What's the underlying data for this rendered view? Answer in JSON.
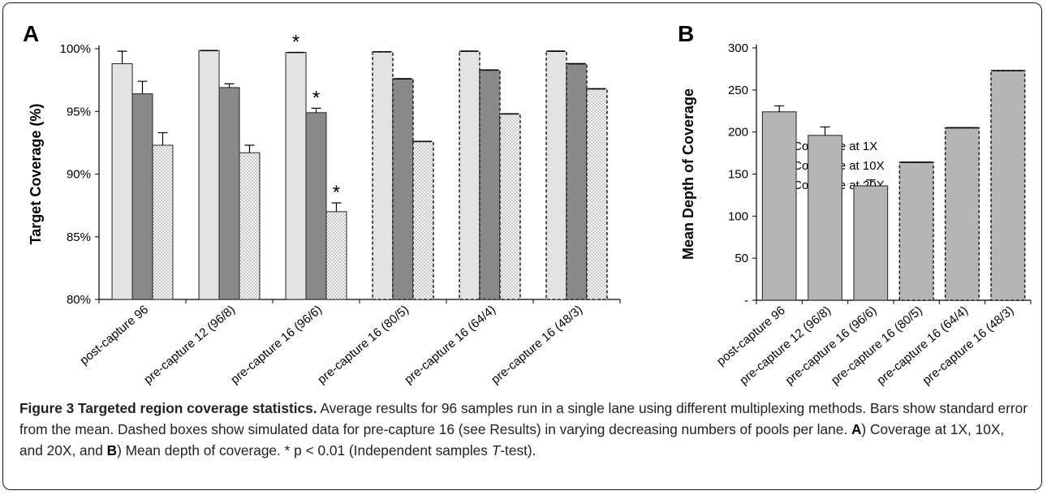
{
  "chart_data": [
    {
      "panel": "A",
      "type": "bar",
      "ylabel": "Target Coverage (%)",
      "ylim": [
        80,
        100
      ],
      "yticks": [
        80,
        85,
        90,
        95,
        100
      ],
      "ytick_labels": [
        "80%",
        "85%",
        "90%",
        "95%",
        "100%"
      ],
      "categories": [
        "post-capture 96",
        "pre-capture 12 (96/8)",
        "pre-capture 16 (96/6)",
        "pre-capture 16 (80/5)",
        "pre-capture 16 (64/4)",
        "pre-capture 16 (48/3)"
      ],
      "simulated": [
        false,
        false,
        false,
        true,
        true,
        true
      ],
      "series": [
        {
          "name": "Coverage at 1X",
          "color": "#e3e3e3",
          "pattern": "solid-light",
          "values": [
            98.8,
            99.85,
            99.7,
            99.75,
            99.8,
            99.8
          ],
          "errors": [
            1.0,
            0,
            0,
            0,
            0,
            0
          ]
        },
        {
          "name": "Coverage at 10X",
          "color": "#898989",
          "pattern": "solid-dark",
          "values": [
            96.4,
            96.9,
            94.9,
            97.6,
            98.3,
            98.8
          ],
          "errors": [
            1.0,
            0.3,
            0.35,
            0,
            0,
            0
          ]
        },
        {
          "name": "Coverage at 20X",
          "color": "#f4f4f4",
          "pattern": "dotted",
          "values": [
            92.3,
            91.7,
            87.0,
            92.6,
            94.8,
            96.8
          ],
          "errors": [
            1.0,
            0.6,
            0.7,
            0,
            0,
            0
          ]
        }
      ],
      "annotations": [
        {
          "text": "*",
          "category": "pre-capture 16 (96/6)",
          "series": "Coverage at 1X"
        },
        {
          "text": "*",
          "category": "pre-capture 16 (96/6)",
          "series": "Coverage at 10X"
        },
        {
          "text": "*",
          "category": "pre-capture 16 (96/6)",
          "series": "Coverage at 20X"
        }
      ],
      "legend": "right",
      "grid": false
    },
    {
      "panel": "B",
      "type": "bar",
      "ylabel": "Mean Depth of Coverage",
      "ylim": [
        0,
        300
      ],
      "yticks": [
        0,
        50,
        100,
        150,
        200,
        250,
        300
      ],
      "ytick_labels": [
        "-",
        "50",
        "100",
        "150",
        "200",
        "250",
        "300"
      ],
      "categories": [
        "post-capture 96",
        "pre-capture 12 (96/8)",
        "pre-capture 16 (96/6)",
        "pre-capture 16 (80/5)",
        "pre-capture 16 (64/4)",
        "pre-capture 16 (48/3)"
      ],
      "simulated": [
        false,
        false,
        false,
        true,
        true,
        true
      ],
      "series": [
        {
          "color": "#b5b5b5",
          "values": [
            224,
            196,
            136,
            164,
            205,
            273
          ],
          "errors": [
            7,
            10,
            7,
            0,
            0,
            0
          ]
        }
      ],
      "legend": "none",
      "grid": false
    }
  ],
  "panel_a_label": "A",
  "panel_b_label": "B",
  "caption": {
    "lead": "Figure 3 Targeted region coverage statistics.",
    "text1": " Average results for 96 samples run in a single lane using different multiplexing methods. Bars show standard error from the mean. Dashed boxes show simulated data for pre-capture 16 (see Results) in varying decreasing numbers of pools per lane. ",
    "a": "A",
    "text2": ") Coverage at 1X, 10X, and 20X, and ",
    "b": "B",
    "text3": ") Mean depth of coverage. * p < 0.01 (Independent samples ",
    "t": "T",
    "text4": "-test)."
  }
}
